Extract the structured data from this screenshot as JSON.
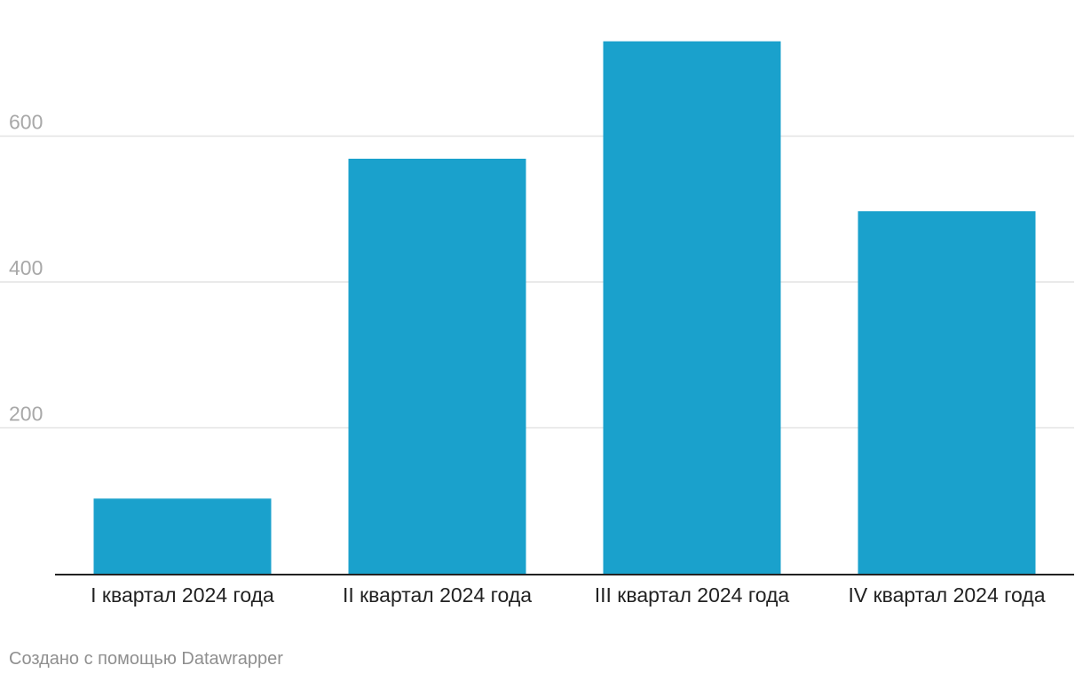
{
  "chart_data": {
    "type": "bar",
    "categories": [
      "I квартал 2024 года",
      "II квартал 2024 года",
      "III квартал 2024 года",
      "IV квартал 2024 года"
    ],
    "values": [
      103,
      569,
      730,
      497
    ],
    "title": "",
    "xlabel": "",
    "ylabel": "",
    "ylim": [
      0,
      730
    ],
    "yticks": [
      200,
      400,
      600
    ],
    "grid": true,
    "legend": "none",
    "bar_color": "#1aa1cc",
    "grid_color": "#e3e3e3",
    "baseline_color": "#222222"
  },
  "footer": {
    "credit": "Создано с помощью Datawrapper"
  }
}
